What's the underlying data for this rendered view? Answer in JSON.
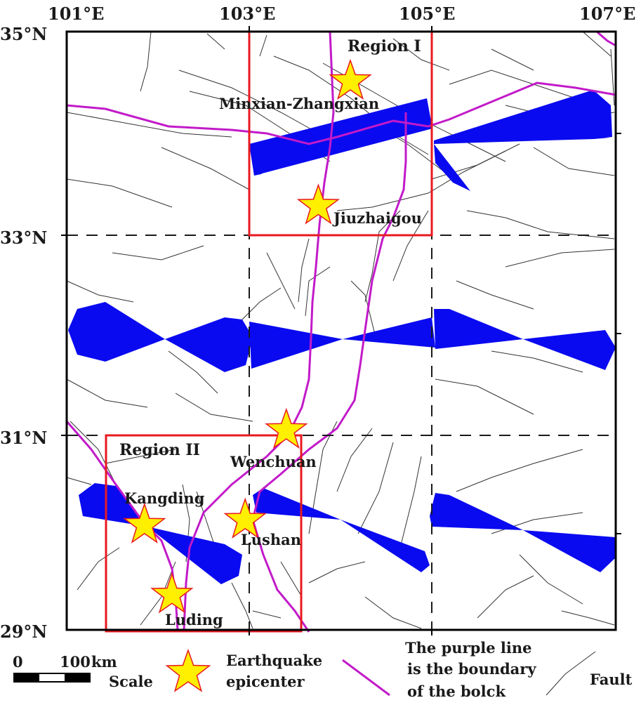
{
  "axes": {
    "lon_labels": [
      "101°E",
      "103°E",
      "105°E",
      "107°E"
    ],
    "lat_labels": [
      "35°N",
      "33°N",
      "31°N",
      "29°N"
    ],
    "lon_range": [
      101,
      107
    ],
    "lat_range": [
      29,
      35
    ]
  },
  "regions": [
    {
      "name": "Region I",
      "lon": [
        103,
        105
      ],
      "lat": [
        33,
        35
      ],
      "color": "#e8191f"
    },
    {
      "name": "Region II",
      "lon": [
        101.45,
        103.6
      ],
      "lat": [
        29,
        31
      ],
      "color": "#e8191f"
    }
  ],
  "epicenters": [
    {
      "name": "Minxian-Zhangxian",
      "lon": 104.1,
      "lat": 34.5
    },
    {
      "name": "Jiuzhaigou",
      "lon": 103.75,
      "lat": 33.25
    },
    {
      "name": "Wenchuan",
      "lon": 103.4,
      "lat": 31.0
    },
    {
      "name": "Kangding",
      "lon": 101.85,
      "lat": 30.05
    },
    {
      "name": "Lushan",
      "lon": 102.95,
      "lat": 30.1
    },
    {
      "name": "Luding",
      "lon": 102.15,
      "lat": 29.35
    }
  ],
  "legend": {
    "scale_zero": "0",
    "scale_value": "100",
    "scale_unit": "km",
    "scale_label": "Scale",
    "epicenter_label_1": "Earthquake",
    "epicenter_label_2": "epicenter",
    "boundary_label_1": "The purple line",
    "boundary_label_2": "is the boundary",
    "boundary_label_3": "of the bolck",
    "fault_label": "Fault"
  },
  "colors": {
    "region_box": "#e8191f",
    "block_boundary": "#c21ac9",
    "star_fill": "#ffef00",
    "star_stroke": "#e8191f",
    "bowtie": "#0a0af0",
    "fault": "#333333"
  }
}
